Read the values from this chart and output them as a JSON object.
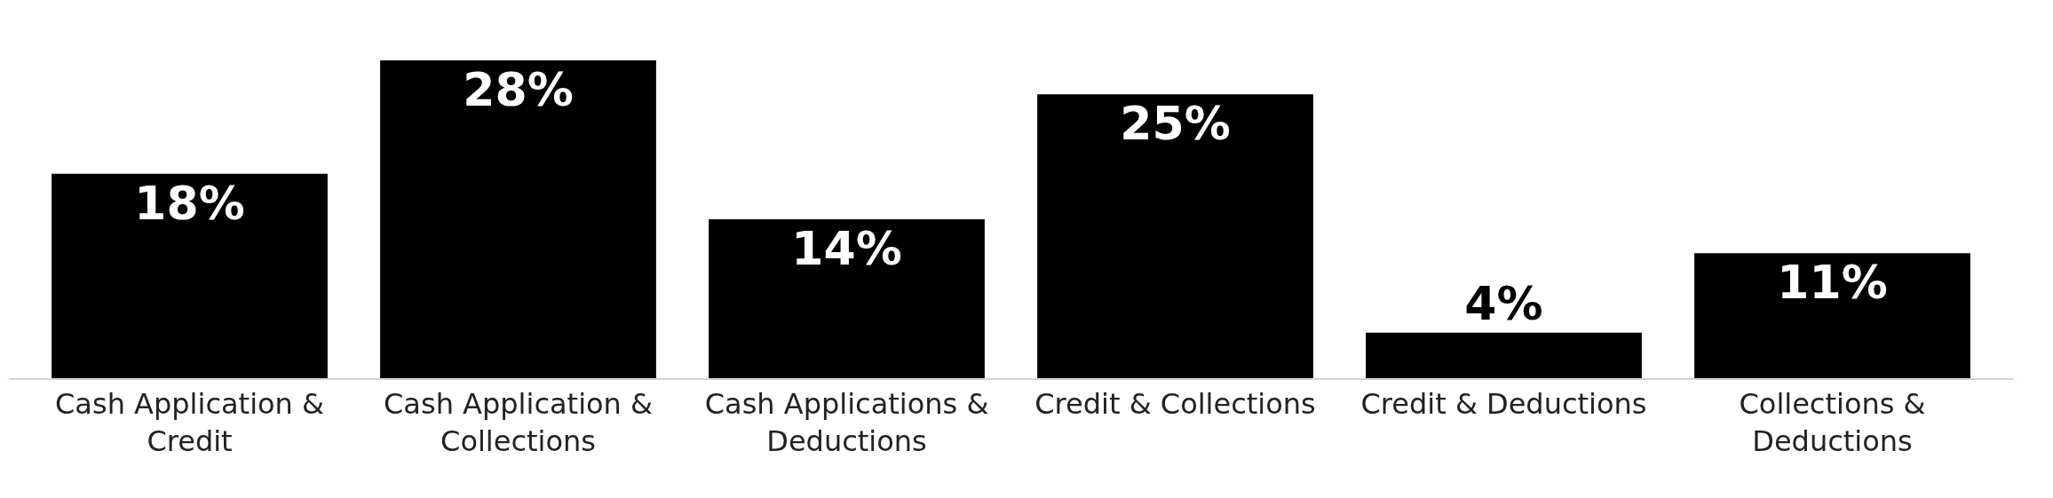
{
  "chart_data": {
    "type": "bar",
    "categories": [
      "Cash Application & Credit",
      "Cash Application & Collections",
      "Cash Applications & Deductions",
      "Credit & Collections",
      "Credit & Deductions",
      "Collections & Deductions"
    ],
    "values": [
      18,
      28,
      14,
      25,
      4,
      11
    ],
    "value_labels": [
      "18%",
      "28%",
      "14%",
      "25%",
      "4%",
      "11%"
    ],
    "color": "#000000",
    "ylim": [
      0,
      28
    ],
    "tick_labels": "x",
    "grid": false
  }
}
